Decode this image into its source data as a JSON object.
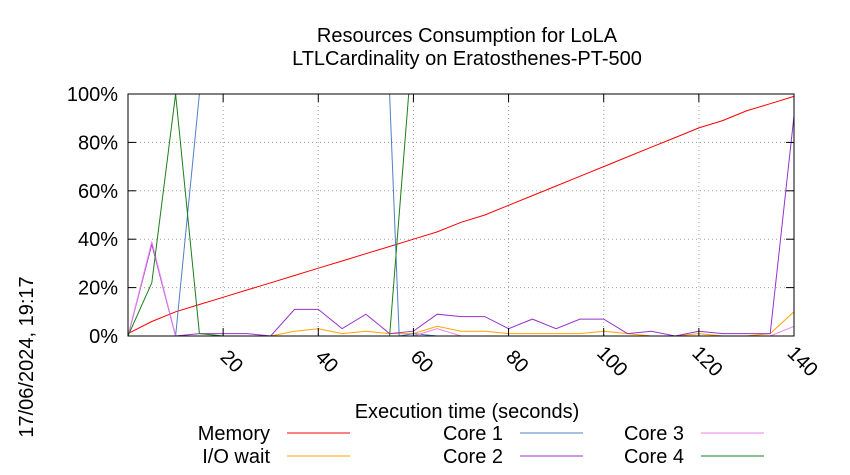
{
  "chart_data": {
    "type": "line",
    "title": "Resources Consumption for LoLA",
    "subtitle": "LTLCardinality on Eratosthenes-PT-500",
    "xlabel": "Execution time (seconds)",
    "ylabel": "",
    "side_label": "17/06/2024, 19:17",
    "xlim": [
      0,
      140
    ],
    "ylim": [
      0,
      100
    ],
    "x_ticks": [
      20,
      40,
      60,
      80,
      100,
      120,
      140
    ],
    "y_ticks": [
      0,
      20,
      40,
      60,
      80,
      100
    ],
    "y_tick_labels": [
      "0%",
      "20%",
      "40%",
      "60%",
      "80%",
      "100%"
    ],
    "grid": true,
    "legend_position": "bottom",
    "series": [
      {
        "name": "Memory",
        "color": "#ff0000",
        "x": [
          0,
          5,
          10,
          15,
          20,
          25,
          30,
          35,
          40,
          45,
          50,
          55,
          60,
          65,
          70,
          75,
          80,
          85,
          90,
          95,
          100,
          105,
          110,
          115,
          120,
          125,
          130,
          135,
          140
        ],
        "y": [
          1,
          6,
          10,
          13,
          16,
          19,
          22,
          25,
          28,
          31,
          34,
          37,
          40,
          43,
          47,
          50,
          54,
          58,
          62,
          66,
          70,
          74,
          78,
          82,
          86,
          89,
          93,
          96,
          99
        ]
      },
      {
        "name": "I/O wait",
        "color": "#ffa500",
        "x": [
          0,
          5,
          10,
          15,
          20,
          25,
          30,
          35,
          40,
          45,
          50,
          55,
          60,
          65,
          70,
          75,
          80,
          85,
          90,
          95,
          100,
          105,
          110,
          115,
          120,
          125,
          130,
          135,
          140
        ],
        "y": [
          0,
          0,
          0,
          0,
          0,
          0,
          0,
          2,
          3,
          1,
          2,
          1,
          1,
          4,
          2,
          2,
          1,
          1,
          1,
          1,
          2,
          1,
          0,
          0,
          1,
          0,
          0,
          1,
          10
        ]
      },
      {
        "name": "Core 1",
        "color": "#4f7fc6",
        "x": [
          0,
          5,
          10,
          15,
          20,
          25,
          30,
          35,
          40,
          45,
          50,
          55,
          57,
          60,
          65,
          70,
          75,
          80,
          85,
          90,
          95,
          100,
          105,
          110,
          115,
          120,
          125,
          130,
          135,
          140
        ],
        "y": [
          0,
          38,
          0,
          100,
          100,
          100,
          100,
          100,
          100,
          100,
          100,
          100,
          0,
          1,
          0,
          0,
          0,
          0,
          0,
          0,
          0,
          0,
          0,
          0,
          0,
          0,
          0,
          0,
          0,
          0
        ]
      },
      {
        "name": "Core 2",
        "color": "#9933cc",
        "x": [
          0,
          5,
          10,
          15,
          20,
          25,
          30,
          35,
          40,
          45,
          50,
          55,
          60,
          65,
          70,
          75,
          80,
          85,
          90,
          95,
          100,
          105,
          110,
          115,
          120,
          125,
          130,
          135,
          140
        ],
        "y": [
          0,
          38,
          0,
          1,
          1,
          1,
          0,
          11,
          11,
          3,
          9,
          1,
          2,
          9,
          8,
          8,
          3,
          7,
          3,
          7,
          7,
          1,
          2,
          0,
          2,
          1,
          1,
          1,
          91
        ]
      },
      {
        "name": "Core 3",
        "color": "#ee82ee",
        "x": [
          0,
          5,
          10,
          15,
          20,
          25,
          30,
          35,
          40,
          45,
          50,
          55,
          60,
          65,
          70,
          75,
          80,
          85,
          90,
          95,
          100,
          105,
          110,
          115,
          120,
          125,
          130,
          135,
          140
        ],
        "y": [
          0,
          39,
          0,
          0,
          0,
          0,
          0,
          0,
          0,
          0,
          0,
          0,
          0,
          3,
          0,
          0,
          0,
          0,
          0,
          0,
          0,
          0,
          0,
          0,
          0,
          0,
          0,
          0,
          4
        ]
      },
      {
        "name": "Core 4",
        "color": "#1a7f1a",
        "x": [
          0,
          5,
          10,
          15,
          20,
          25,
          30,
          35,
          40,
          45,
          50,
          55,
          59,
          60,
          65,
          70,
          75,
          80,
          85,
          90,
          95,
          100,
          105,
          110,
          115,
          120,
          125,
          130,
          135,
          140
        ],
        "y": [
          0,
          22,
          100,
          1,
          0,
          0,
          0,
          0,
          0,
          0,
          0,
          0,
          100,
          100,
          100,
          100,
          100,
          100,
          100,
          100,
          100,
          100,
          100,
          100,
          100,
          100,
          100,
          100,
          100,
          100
        ]
      }
    ]
  }
}
